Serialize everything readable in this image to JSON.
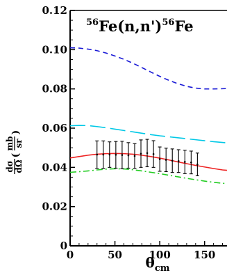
{
  "chart_data": {
    "type": "line",
    "title": {
      "sup1": "56",
      "text1": "Fe(n,n')",
      "sup2": "56",
      "text2": "Fe"
    },
    "xlabel": {
      "main": "θ",
      "sub": "cm"
    },
    "ylabel": {
      "frac_num": "dσ",
      "frac_den": "dΩ",
      "unit_num": "mb",
      "unit_den": "sr",
      "paren_open": "(",
      "paren_close": ")"
    },
    "xlim": [
      0,
      175
    ],
    "ylim": [
      0,
      0.12
    ],
    "xticks": [
      0,
      50,
      100,
      150
    ],
    "xtick_labels": [
      "0",
      "50",
      "100",
      "150"
    ],
    "yticks": [
      0,
      0.02,
      0.04,
      0.06,
      0.08,
      0.1,
      0.12
    ],
    "ytick_labels": [
      "0",
      "0.02",
      "0.04",
      "0.06",
      "0.08",
      "0.10",
      "0.12"
    ],
    "series": [
      {
        "style": "short-dash",
        "color": "#1a1ad6",
        "x": [
          0,
          10,
          20,
          30,
          40,
          50,
          60,
          70,
          80,
          90,
          100,
          110,
          120,
          130,
          140,
          150,
          160,
          170,
          175
        ],
        "values": [
          0.101,
          0.1008,
          0.1003,
          0.0995,
          0.0983,
          0.0968,
          0.0951,
          0.0931,
          0.0909,
          0.0886,
          0.0864,
          0.0844,
          0.0827,
          0.0813,
          0.0804,
          0.08,
          0.08,
          0.0801,
          0.0802
        ]
      },
      {
        "style": "long-dash",
        "color": "#00c8e6",
        "x": [
          0,
          10,
          20,
          30,
          40,
          50,
          60,
          70,
          80,
          90,
          100,
          110,
          120,
          130,
          140,
          150,
          160,
          170,
          175
        ],
        "values": [
          0.0612,
          0.0614,
          0.0613,
          0.0608,
          0.0602,
          0.0595,
          0.0588,
          0.0581,
          0.0574,
          0.0567,
          0.0561,
          0.0556,
          0.0551,
          0.0546,
          0.0541,
          0.0536,
          0.0531,
          0.0527,
          0.0525
        ]
      },
      {
        "style": "solid",
        "color": "#ee2222",
        "x": [
          0,
          10,
          20,
          30,
          40,
          50,
          60,
          70,
          80,
          90,
          100,
          110,
          120,
          130,
          140,
          150,
          160,
          170,
          175
        ],
        "values": [
          0.0448,
          0.0455,
          0.0462,
          0.0467,
          0.047,
          0.0471,
          0.047,
          0.0467,
          0.0462,
          0.0455,
          0.0447,
          0.0438,
          0.0428,
          0.0419,
          0.041,
          0.0402,
          0.0394,
          0.0387,
          0.0385
        ]
      },
      {
        "style": "dash-dot",
        "color": "#22cc22",
        "x": [
          0,
          10,
          20,
          30,
          40,
          50,
          60,
          70,
          80,
          90,
          100,
          110,
          120,
          130,
          140,
          150,
          160,
          170,
          175
        ],
        "values": [
          0.0375,
          0.0378,
          0.0382,
          0.0387,
          0.0391,
          0.0393,
          0.0392,
          0.0388,
          0.0382,
          0.0375,
          0.0368,
          0.036,
          0.0352,
          0.0344,
          0.0337,
          0.033,
          0.0324,
          0.0319,
          0.0317
        ]
      }
    ],
    "errorbars": {
      "color": "#000000",
      "x": [
        30,
        37,
        44,
        51,
        58,
        65,
        72,
        79,
        86,
        93,
        100,
        107,
        114,
        121,
        128,
        135,
        142
      ],
      "y": [
        0.0465,
        0.0465,
        0.0465,
        0.0464,
        0.0463,
        0.0461,
        0.0458,
        0.047,
        0.0473,
        0.0468,
        0.0442,
        0.0438,
        0.0434,
        0.0432,
        0.0428,
        0.0425,
        0.0415
      ],
      "err": [
        0.007,
        0.007,
        0.0065,
        0.0068,
        0.007,
        0.0065,
        0.0063,
        0.007,
        0.007,
        0.0068,
        0.0062,
        0.006,
        0.006,
        0.0058,
        0.006,
        0.0058,
        0.0058
      ]
    }
  }
}
